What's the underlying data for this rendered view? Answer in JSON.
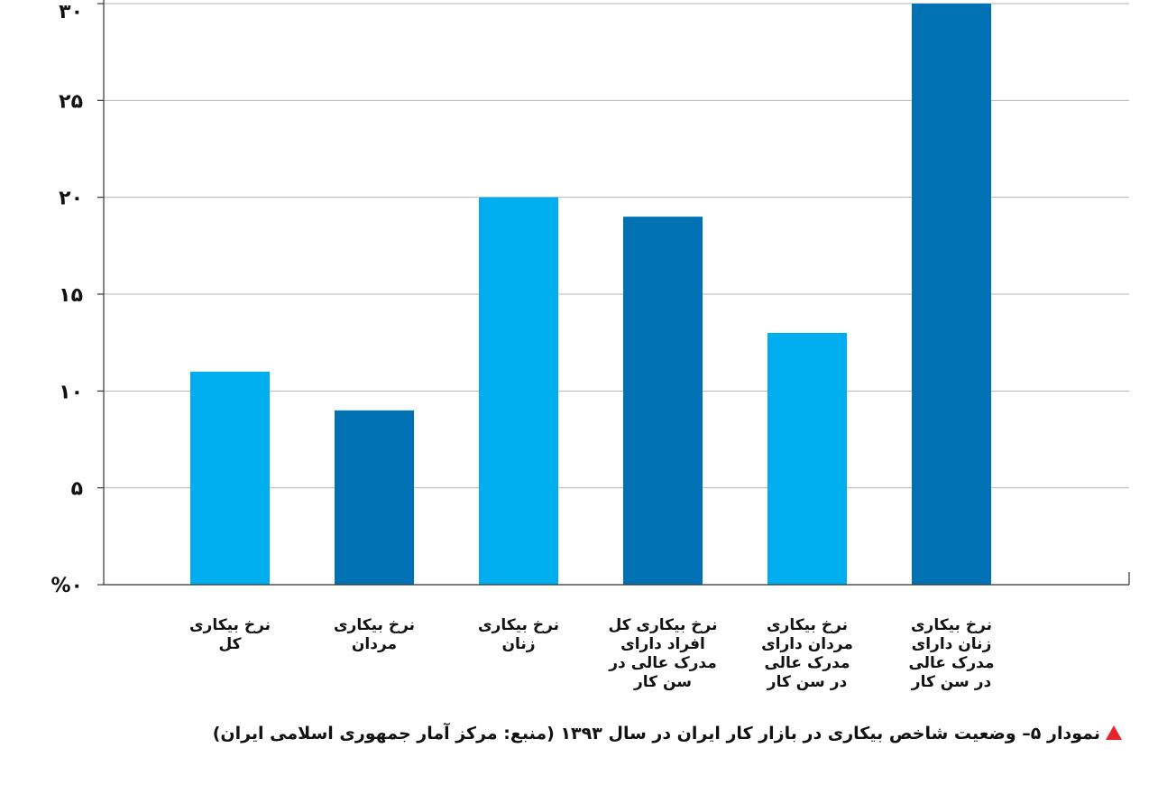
{
  "caption": {
    "text": "نمودار ۵– وضعیت شاخص بیکاری در بازار کار ایران در سال ۱۳۹۳ (منبع: مرکز آمار جمهوری اسلامی ایران)",
    "marker_color": "#e5242b"
  },
  "chart_data": {
    "type": "bar",
    "title": "",
    "xlabel": "",
    "ylabel": "",
    "ylim": [
      0,
      30
    ],
    "yticks": [
      {
        "value": 0,
        "label": "%۰"
      },
      {
        "value": 5,
        "label": "۵"
      },
      {
        "value": 10,
        "label": "۱۰"
      },
      {
        "value": 15,
        "label": "۱۵"
      },
      {
        "value": 20,
        "label": "۲۰"
      },
      {
        "value": 25,
        "label": "۲۵"
      },
      {
        "value": 30,
        "label": "۳۰"
      }
    ],
    "grid": true,
    "categories": [
      [
        "نرخ بیکاری",
        "کل"
      ],
      [
        "نرخ بیکاری",
        "مردان"
      ],
      [
        "نرخ بیکاری",
        "زنان"
      ],
      [
        "نرخ بیکاری کل",
        "افراد دارای",
        "مدرک عالی در",
        "سن کار"
      ],
      [
        "نرخ بیکاری",
        "مردان دارای",
        "مدرک عالی",
        "در سن کار"
      ],
      [
        "نرخ بیکاری",
        "زنان دارای",
        "مدرک عالی",
        "در سن کار"
      ]
    ],
    "values": [
      11,
      9,
      20,
      19,
      13,
      30
    ],
    "colors": [
      "#00aeef",
      "#0071b3",
      "#00aeef",
      "#0071b3",
      "#00aeef",
      "#0071b3"
    ],
    "grid_color": "#b3b3b3",
    "axis_color": "#333333"
  }
}
